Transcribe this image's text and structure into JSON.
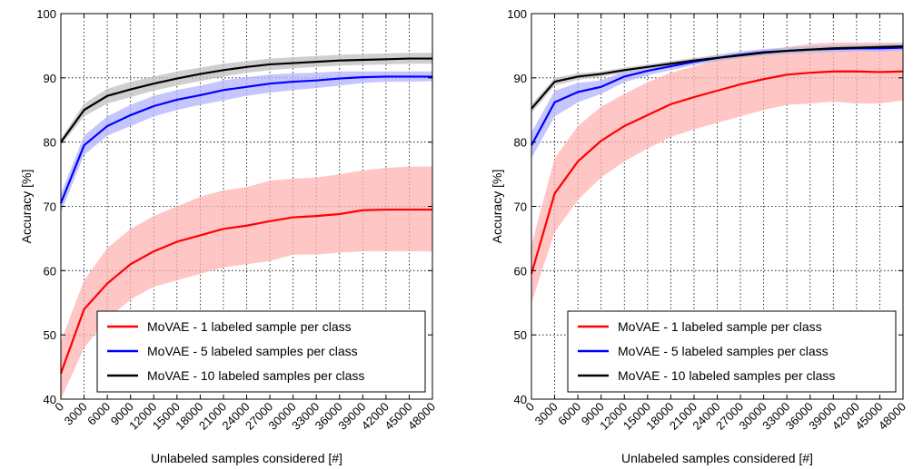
{
  "chart_data": [
    {
      "type": "line",
      "xlabel": "Unlabeled samples considered [#]",
      "ylabel": "Accuracy [%]",
      "xlim": [
        0,
        48000
      ],
      "ylim": [
        40,
        100
      ],
      "grid": true,
      "legend_placement": "bottom-right",
      "x_ticks": [
        "0",
        "3000",
        "6000",
        "9000",
        "12000",
        "15000",
        "18000",
        "21000",
        "24000",
        "27000",
        "30000",
        "33000",
        "36000",
        "39000",
        "42000",
        "45000",
        "48000"
      ],
      "y_ticks": [
        "40",
        "50",
        "60",
        "70",
        "80",
        "90",
        "100"
      ],
      "x": [
        0,
        3000,
        6000,
        9000,
        12000,
        15000,
        18000,
        21000,
        24000,
        27000,
        30000,
        33000,
        36000,
        39000,
        42000,
        45000,
        48000
      ],
      "series": [
        {
          "name": "MoVAE - 1 labeled sample per class",
          "color": "#ff0000",
          "band_color": "#ffb3b3",
          "values": [
            44,
            54,
            58,
            61,
            63,
            64.5,
            65.5,
            66.5,
            67,
            67.7,
            68.3,
            68.5,
            68.8,
            69.4,
            69.5,
            69.5,
            69.5
          ],
          "lower": [
            40,
            48,
            52.5,
            55.5,
            57.5,
            58.5,
            59.5,
            60.5,
            61,
            61.5,
            62.5,
            62.5,
            62.8,
            63,
            63,
            63,
            63
          ],
          "upper": [
            49,
            58.5,
            63.5,
            66.5,
            68.5,
            70,
            71.5,
            72.5,
            73,
            74,
            74.3,
            74.5,
            75,
            75.6,
            76,
            76.2,
            76.2
          ]
        },
        {
          "name": "MoVAE - 5 labeled samples per class",
          "color": "#0000ff",
          "band_color": "#b3b3ff",
          "values": [
            70.5,
            79.5,
            82.5,
            84.2,
            85.6,
            86.6,
            87.3,
            88.1,
            88.6,
            89.1,
            89.4,
            89.6,
            89.9,
            90.1,
            90.2,
            90.2,
            90.2
          ],
          "lower": [
            69,
            78,
            81,
            82.5,
            84,
            85,
            85.8,
            86.5,
            87.2,
            87.7,
            88.1,
            88.4,
            88.8,
            89.2,
            89.4,
            89.4,
            89.5
          ],
          "upper": [
            72,
            81,
            84,
            85.8,
            87.2,
            88.1,
            88.8,
            89.6,
            90.1,
            90.5,
            90.7,
            90.8,
            91,
            91,
            91,
            91,
            91
          ]
        },
        {
          "name": "MoVAE - 10 labeled samples per class",
          "color": "#000000",
          "band_color": "#bfbfbf",
          "values": [
            80,
            85,
            87.2,
            88.2,
            89.1,
            89.9,
            90.6,
            91.2,
            91.7,
            92.1,
            92.3,
            92.5,
            92.7,
            92.8,
            92.9,
            93,
            93
          ],
          "lower": [
            79.5,
            84,
            86,
            87,
            88,
            88.8,
            89.5,
            90.2,
            90.8,
            91.2,
            91.5,
            91.7,
            91.9,
            92,
            92.1,
            92.2,
            92.2
          ],
          "upper": [
            80.5,
            86,
            88.3,
            89.4,
            90.2,
            91,
            91.6,
            92.2,
            92.6,
            93,
            93.2,
            93.4,
            93.6,
            93.7,
            93.8,
            93.9,
            93.9
          ]
        }
      ]
    },
    {
      "type": "line",
      "xlabel": "Unlabeled samples considered [#]",
      "ylabel": "Accuracy [%]",
      "xlim": [
        0,
        48000
      ],
      "ylim": [
        40,
        100
      ],
      "grid": true,
      "legend_placement": "bottom-right",
      "x_ticks": [
        "0",
        "3000",
        "6000",
        "9000",
        "12000",
        "15000",
        "18000",
        "21000",
        "24000",
        "27000",
        "30000",
        "33000",
        "36000",
        "39000",
        "42000",
        "45000",
        "48000"
      ],
      "y_ticks": [
        "40",
        "50",
        "60",
        "70",
        "80",
        "90",
        "100"
      ],
      "x": [
        0,
        3000,
        6000,
        9000,
        12000,
        15000,
        18000,
        21000,
        24000,
        27000,
        30000,
        33000,
        36000,
        39000,
        42000,
        45000,
        48000
      ],
      "series": [
        {
          "name": "MoVAE - 1 labeled sample per class",
          "color": "#ff0000",
          "band_color": "#ffb3b3",
          "values": [
            59.5,
            72,
            77,
            80.2,
            82.5,
            84.2,
            85.9,
            87,
            88,
            89,
            89.8,
            90.5,
            90.8,
            91,
            91,
            90.9,
            91
          ],
          "lower": [
            55,
            66,
            71,
            74.5,
            77,
            79,
            80.8,
            82,
            83,
            84,
            85,
            85.8,
            86,
            86.3,
            86,
            86,
            86.5
          ],
          "upper": [
            64,
            77.5,
            82.5,
            85.5,
            87.5,
            89.3,
            90.8,
            91.8,
            92.8,
            93.6,
            94.3,
            94.8,
            95.3,
            95.5,
            95.5,
            95.5,
            95.5
          ]
        },
        {
          "name": "MoVAE - 5 labeled samples per class",
          "color": "#0000ff",
          "band_color": "#b3b3ff",
          "values": [
            79.5,
            86.2,
            87.8,
            88.6,
            90.2,
            91.1,
            91.8,
            92.5,
            93.1,
            93.6,
            94,
            94.2,
            94.4,
            94.5,
            94.6,
            94.6,
            94.7
          ],
          "lower": [
            77.5,
            84,
            86.2,
            87.5,
            89.3,
            90.4,
            91.2,
            92,
            92.6,
            93.1,
            93.5,
            93.7,
            93.9,
            94,
            94.1,
            94.1,
            94.2
          ],
          "upper": [
            81.5,
            88,
            89.2,
            89.6,
            91,
            91.8,
            92.4,
            93,
            93.6,
            94.1,
            94.5,
            94.7,
            94.9,
            95,
            95.1,
            95.1,
            95.2
          ]
        },
        {
          "name": "MoVAE - 10 labeled samples per class",
          "color": "#000000",
          "band_color": "#bfbfbf",
          "values": [
            85.2,
            89.4,
            90.2,
            90.6,
            91.2,
            91.7,
            92.2,
            92.7,
            93.1,
            93.5,
            93.9,
            94.2,
            94.4,
            94.6,
            94.7,
            94.8,
            94.9
          ],
          "lower": [
            84.5,
            88.8,
            89.7,
            90.2,
            90.8,
            91.3,
            91.8,
            92.3,
            92.7,
            93.1,
            93.5,
            93.8,
            94,
            94.2,
            94.3,
            94.4,
            94.5
          ],
          "upper": [
            85.9,
            90,
            90.7,
            91,
            91.6,
            92.1,
            92.6,
            93.1,
            93.5,
            93.9,
            94.3,
            94.6,
            94.8,
            95,
            95.1,
            95.2,
            95.3
          ]
        }
      ]
    }
  ]
}
